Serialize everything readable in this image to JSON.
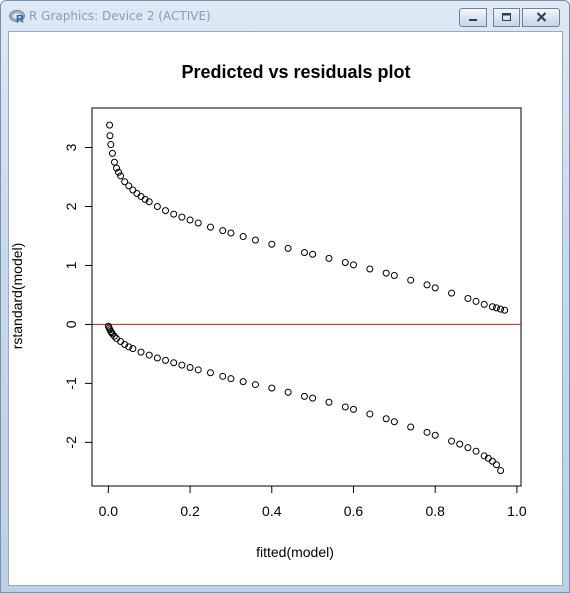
{
  "window": {
    "title": "R Graphics: Device 2 (ACTIVE)",
    "app_icon": "r-logo-icon",
    "buttons": [
      {
        "name": "minimize",
        "icon": "minimize-icon"
      },
      {
        "name": "maximize",
        "icon": "maximize-icon"
      },
      {
        "name": "close",
        "icon": "close-icon"
      }
    ]
  },
  "chart_data": {
    "type": "scatter",
    "title": "Predicted vs residuals plot",
    "xlabel": "fitted(model)",
    "ylabel": "rstandard(model)",
    "xlim": [
      -0.04,
      1.01
    ],
    "ylim": [
      -2.74,
      3.67
    ],
    "x_ticks": [
      0.0,
      0.2,
      0.4,
      0.6,
      0.8,
      1.0
    ],
    "x_tick_labels": [
      "0.0",
      "0.2",
      "0.4",
      "0.6",
      "0.8",
      "1.0"
    ],
    "y_ticks": [
      -2,
      -1,
      0,
      1,
      2,
      3
    ],
    "y_tick_labels": [
      "-2",
      "-1",
      "0",
      "1",
      "2",
      "3"
    ],
    "marker": "open-circle",
    "reference_line": {
      "y": 0,
      "color": "#b22222"
    },
    "grid": false,
    "legend": "none",
    "series": [
      {
        "x": [
          0.003,
          0.004,
          0.006,
          0.01,
          0.015,
          0.02,
          0.025,
          0.03,
          0.04,
          0.05,
          0.06,
          0.07,
          0.08,
          0.09,
          0.1,
          0.12,
          0.14,
          0.16,
          0.18,
          0.2,
          0.22,
          0.25,
          0.28,
          0.3,
          0.33,
          0.36,
          0.4,
          0.44,
          0.48,
          0.5,
          0.54,
          0.58,
          0.6,
          0.64,
          0.68,
          0.7,
          0.74,
          0.78,
          0.8,
          0.84,
          0.88,
          0.9,
          0.92,
          0.94,
          0.95,
          0.96,
          0.97
        ],
        "y": [
          3.38,
          3.2,
          3.05,
          2.9,
          2.75,
          2.65,
          2.58,
          2.52,
          2.42,
          2.35,
          2.28,
          2.22,
          2.17,
          2.12,
          2.08,
          2.0,
          1.93,
          1.87,
          1.82,
          1.77,
          1.72,
          1.65,
          1.59,
          1.55,
          1.49,
          1.43,
          1.36,
          1.29,
          1.22,
          1.19,
          1.12,
          1.05,
          1.01,
          0.94,
          0.87,
          0.83,
          0.75,
          0.67,
          0.62,
          0.53,
          0.44,
          0.39,
          0.34,
          0.3,
          0.28,
          0.26,
          0.24
        ]
      },
      {
        "x": [
          0.0,
          0.002,
          0.004,
          0.006,
          0.008,
          0.01,
          0.015,
          0.02,
          0.03,
          0.04,
          0.05,
          0.06,
          0.08,
          0.1,
          0.12,
          0.14,
          0.16,
          0.18,
          0.2,
          0.22,
          0.25,
          0.28,
          0.3,
          0.33,
          0.36,
          0.4,
          0.44,
          0.48,
          0.5,
          0.54,
          0.58,
          0.6,
          0.64,
          0.68,
          0.7,
          0.74,
          0.78,
          0.8,
          0.84,
          0.86,
          0.88,
          0.9,
          0.92,
          0.93,
          0.94,
          0.95,
          0.96
        ],
        "y": [
          -0.03,
          -0.06,
          -0.09,
          -0.12,
          -0.14,
          -0.16,
          -0.2,
          -0.24,
          -0.29,
          -0.34,
          -0.38,
          -0.41,
          -0.47,
          -0.52,
          -0.57,
          -0.61,
          -0.65,
          -0.69,
          -0.73,
          -0.77,
          -0.82,
          -0.88,
          -0.92,
          -0.97,
          -1.02,
          -1.08,
          -1.15,
          -1.22,
          -1.25,
          -1.32,
          -1.4,
          -1.44,
          -1.52,
          -1.6,
          -1.65,
          -1.74,
          -1.83,
          -1.88,
          -1.98,
          -2.03,
          -2.09,
          -2.15,
          -2.23,
          -2.27,
          -2.32,
          -2.38,
          -2.48
        ]
      }
    ]
  }
}
